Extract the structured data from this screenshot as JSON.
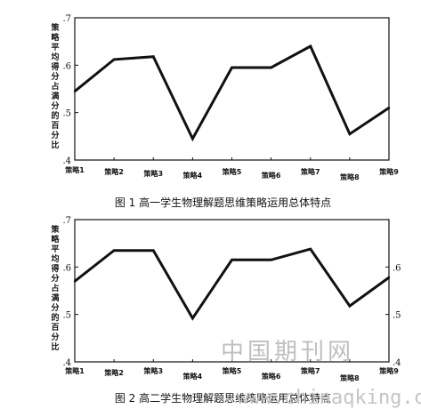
{
  "chart_data": [
    {
      "type": "line",
      "title": "图 1 高一学生物理解题思维策略运用总体特点",
      "ylabel": "策略平均得分占满分的百分比",
      "categories": [
        "策略1",
        "策略2",
        "策略3",
        "策略4",
        "策略5",
        "策略6",
        "策略7",
        "策略8",
        "策略9"
      ],
      "values": [
        0.545,
        0.612,
        0.618,
        0.445,
        0.595,
        0.595,
        0.64,
        0.455,
        0.51
      ],
      "ylim": [
        0.4,
        0.7
      ],
      "y_ticks": [
        ".4",
        ".5",
        ".6",
        ".7"
      ],
      "right_axis": false,
      "grid": false
    },
    {
      "type": "line",
      "title": "图 2 高二学生物理解题思维策略运用总体特点",
      "ylabel": "策略平均得分占满分的百分比",
      "categories": [
        "策略1",
        "策略2",
        "策略3",
        "策略4",
        "策略5",
        "策略6",
        "策略7",
        "策略8",
        "策略9"
      ],
      "values": [
        0.57,
        0.635,
        0.635,
        0.492,
        0.615,
        0.615,
        0.638,
        0.518,
        0.578
      ],
      "ylim": [
        0.4,
        0.7
      ],
      "y_ticks": [
        ".4",
        ".5",
        ".6",
        ".7"
      ],
      "right_axis": true,
      "right_ticks": [
        ".4",
        ".5",
        ".6"
      ],
      "grid": false
    }
  ],
  "watermark": {
    "text1": "中国期刊网",
    "text2": "www.chinaqking.com"
  },
  "colors": {
    "line": "#111111",
    "axis": "#111111",
    "watermark": "#bfbfbf"
  }
}
